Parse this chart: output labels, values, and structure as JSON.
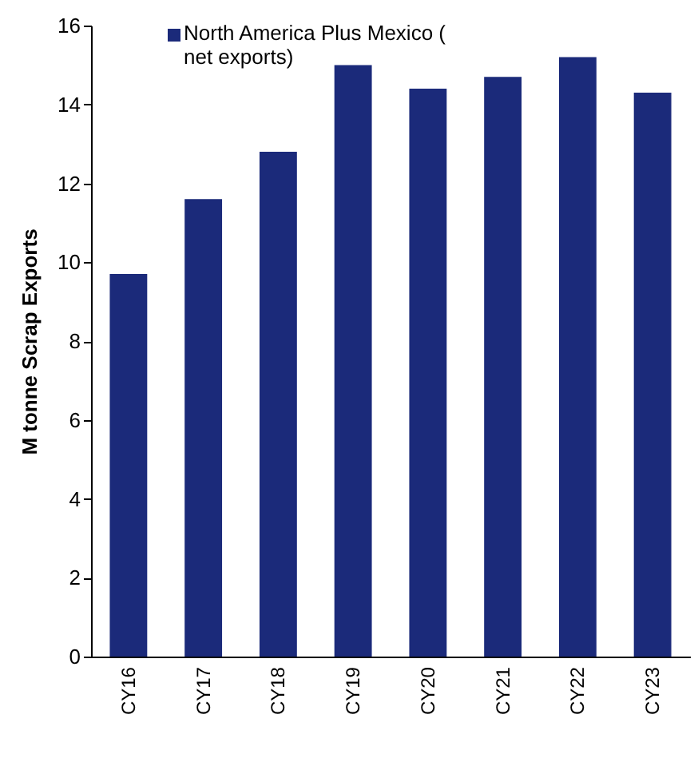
{
  "chart_data": {
    "type": "bar",
    "ylabel": "M tonne Scrap Exports",
    "categories": [
      "CY16",
      "CY17",
      "CY18",
      "CY19",
      "CY20",
      "CY21",
      "CY22",
      "CY23"
    ],
    "series": [
      {
        "name": "North America  Plus Mexico ( net exports)",
        "color": "#1b2a7a",
        "values": [
          9.7,
          11.6,
          12.8,
          15.0,
          14.4,
          14.7,
          15.2,
          14.3
        ]
      }
    ],
    "ylim": [
      0,
      16
    ],
    "yticks": [
      0,
      2,
      4,
      6,
      8,
      10,
      12,
      14,
      16
    ],
    "grid": false,
    "legend": "top left"
  }
}
